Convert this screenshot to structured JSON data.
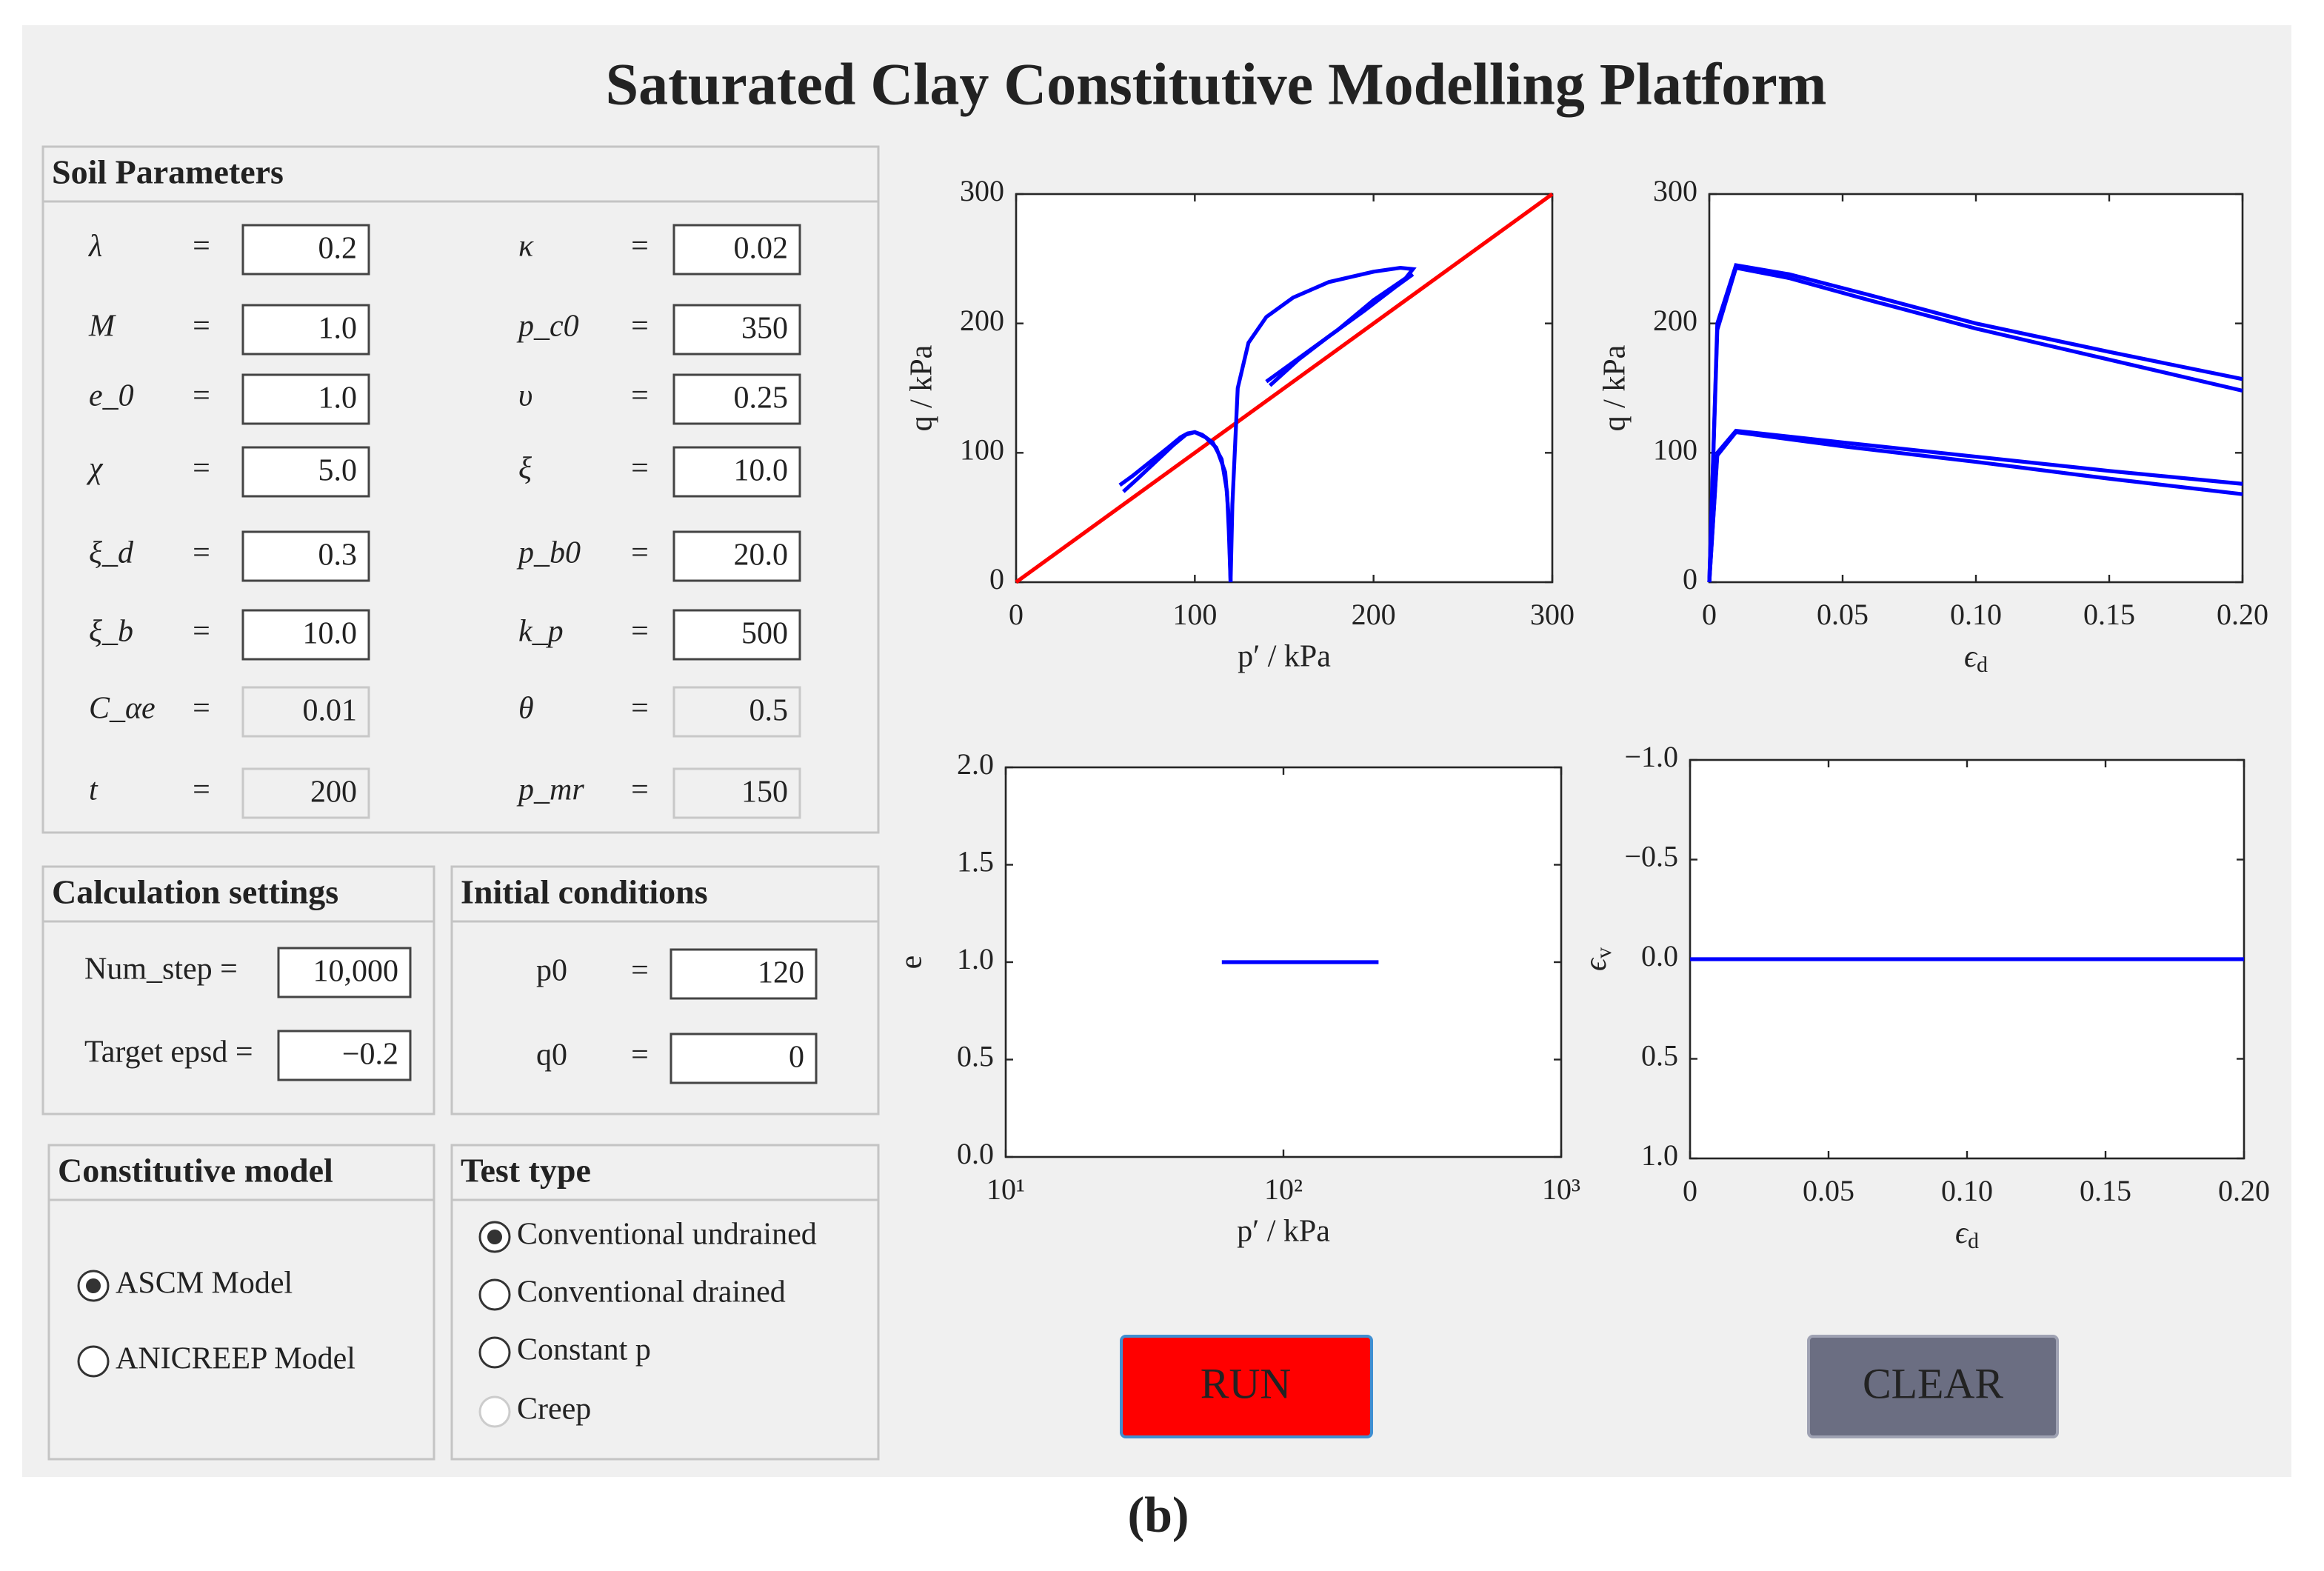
{
  "title": "Saturated Clay Constitutive Modelling Platform",
  "equals": "=",
  "soil_parameters": {
    "title": "Soil Parameters",
    "params": [
      {
        "label": "λ",
        "value": "0.2",
        "enabled": true
      },
      {
        "label": "κ",
        "value": "0.02",
        "enabled": true
      },
      {
        "label": "M",
        "value": "1.0",
        "enabled": true
      },
      {
        "label": "p_c0",
        "value": "350",
        "enabled": true
      },
      {
        "label": "e_0",
        "value": "1.0",
        "enabled": true
      },
      {
        "label": "υ",
        "value": "0.25",
        "enabled": true
      },
      {
        "label": "χ",
        "value": "5.0",
        "enabled": true
      },
      {
        "label": "ξ",
        "value": "10.0",
        "enabled": true
      },
      {
        "label": "ξ_d",
        "value": "0.3",
        "enabled": true
      },
      {
        "label": "p_b0",
        "value": "20.0",
        "enabled": true
      },
      {
        "label": "ξ_b",
        "value": "10.0",
        "enabled": true
      },
      {
        "label": "k_p",
        "value": "500",
        "enabled": true
      },
      {
        "label": "C_αe",
        "value": "0.01",
        "enabled": false
      },
      {
        "label": "θ",
        "value": "0.5",
        "enabled": false
      },
      {
        "label": "t",
        "value": "200",
        "enabled": false
      },
      {
        "label": "p_mr",
        "value": "150",
        "enabled": false
      }
    ]
  },
  "calculation_settings": {
    "title": "Calculation settings",
    "fields": [
      {
        "label": "Num_step =",
        "value": "10,000"
      },
      {
        "label": "Target epsd =",
        "value": "−0.2"
      }
    ]
  },
  "initial_conditions": {
    "title": "Initial conditions",
    "fields": [
      {
        "label": "p0",
        "value": "120"
      },
      {
        "label": "q0",
        "value": "0"
      }
    ]
  },
  "constitutive_model": {
    "title": "Constitutive model",
    "options": [
      {
        "label": "ASCM Model",
        "selected": true,
        "enabled": true
      },
      {
        "label": "ANICREEP Model",
        "selected": false,
        "enabled": true
      }
    ]
  },
  "test_type": {
    "title": "Test type",
    "options": [
      {
        "label": "Conventional undrained",
        "selected": true,
        "enabled": true
      },
      {
        "label": "Conventional drained",
        "selected": false,
        "enabled": true
      },
      {
        "label": "Constant p",
        "selected": false,
        "enabled": true
      },
      {
        "label": "Creep",
        "selected": false,
        "enabled": false
      }
    ]
  },
  "buttons": {
    "run": "RUN",
    "clear": "CLEAR"
  },
  "caption": "(b)",
  "charts": [
    {
      "type": "line",
      "xlabel": "p′ / kPa",
      "ylabel": "q / kPa",
      "log_x": false,
      "xlim": [
        0,
        300
      ],
      "xticks": [
        0,
        100,
        200,
        300
      ],
      "ylim": [
        0,
        300
      ],
      "yticks": [
        0,
        100,
        200,
        300
      ],
      "series": [
        {
          "color": "#ff0000",
          "x": [
            0,
            300
          ],
          "y": [
            0,
            300
          ]
        },
        {
          "color": "#0000ff",
          "x": [
            120,
            119,
            118,
            115,
            110,
            104,
            100,
            96,
            92,
            85,
            75,
            65,
            58
          ],
          "y": [
            0,
            40,
            70,
            95,
            108,
            114,
            116,
            115,
            112,
            104,
            93,
            82,
            75
          ]
        },
        {
          "color": "#0000ff",
          "x": [
            120,
            119,
            117,
            112,
            106,
            100,
            95,
            88,
            78,
            68,
            60
          ],
          "y": [
            0,
            50,
            85,
            104,
            112,
            116,
            114,
            106,
            93,
            80,
            70
          ]
        },
        {
          "color": "#0000ff",
          "x": [
            120,
            121,
            124,
            130,
            140,
            155,
            175,
            200,
            215,
            222,
            218,
            200,
            180,
            160,
            140
          ],
          "y": [
            0,
            60,
            150,
            185,
            205,
            220,
            232,
            240,
            243,
            242,
            235,
            218,
            195,
            175,
            155
          ]
        },
        {
          "color": "#0000ff",
          "x": [
            222,
            212,
            195,
            175,
            158,
            142
          ],
          "y": [
            238,
            228,
            210,
            190,
            172,
            152
          ]
        }
      ]
    },
    {
      "type": "line",
      "xlabel": {
        "symbol": "ϵ",
        "sub": "d"
      },
      "ylabel": "q / kPa",
      "log_x": false,
      "xlim": [
        0,
        0.2
      ],
      "xticks": [
        0,
        0.05,
        {
          "value": 0.1,
          "label": "0.10"
        },
        0.15,
        {
          "value": 0.2,
          "label": "0.20"
        }
      ],
      "ylim": [
        0,
        300
      ],
      "yticks": [
        0,
        100,
        200,
        300
      ],
      "series": [
        {
          "color": "#0000ff",
          "x": [
            0,
            0.003,
            0.01,
            0.03,
            0.06,
            0.1,
            0.15,
            0.2
          ],
          "y": [
            0,
            200,
            245,
            238,
            222,
            200,
            178,
            157
          ]
        },
        {
          "color": "#0000ff",
          "x": [
            0,
            0.003,
            0.01,
            0.03,
            0.06,
            0.1,
            0.15,
            0.2
          ],
          "y": [
            0,
            195,
            243,
            235,
            218,
            196,
            172,
            148
          ]
        },
        {
          "color": "#0000ff",
          "x": [
            0,
            0.003,
            0.01,
            0.05,
            0.1,
            0.15,
            0.2
          ],
          "y": [
            0,
            100,
            117,
            108,
            97,
            86,
            76
          ]
        },
        {
          "color": "#0000ff",
          "x": [
            0,
            0.003,
            0.01,
            0.05,
            0.1,
            0.15,
            0.2
          ],
          "y": [
            0,
            98,
            116,
            105,
            93,
            80,
            68
          ]
        }
      ]
    },
    {
      "type": "line",
      "xlabel": "p′ / kPa",
      "ylabel": "e",
      "log_x": true,
      "xlim": [
        10,
        1000
      ],
      "xticks": [
        {
          "value": 10,
          "label": "10¹"
        },
        {
          "value": 100,
          "label": "10²"
        },
        {
          "value": 1000,
          "label": "10³"
        }
      ],
      "ylim": [
        0,
        2
      ],
      "yticks": [
        {
          "value": 0,
          "label": "0.0"
        },
        0.5,
        {
          "value": 1,
          "label": "1.0"
        },
        1.5,
        {
          "value": 2,
          "label": "2.0"
        }
      ],
      "series": [
        {
          "color": "#0000ff",
          "x": [
            60,
            220
          ],
          "y": [
            1.0,
            1.0
          ]
        }
      ]
    },
    {
      "type": "line",
      "xlabel": {
        "symbol": "ϵ",
        "sub": "d"
      },
      "ylabel": {
        "symbol": "ϵ",
        "sub": "v"
      },
      "log_x": false,
      "xlim": [
        0,
        0.2
      ],
      "xticks": [
        0,
        0.05,
        {
          "value": 0.1,
          "label": "0.10"
        },
        0.15,
        {
          "value": 0.2,
          "label": "0.20"
        }
      ],
      "ylim": [
        1,
        -1
      ],
      "yticks": [
        {
          "value": -1,
          "label": "−1.0"
        },
        {
          "value": -0.5,
          "label": "−0.5"
        },
        {
          "value": 0,
          "label": "0.0"
        },
        0.5,
        {
          "value": 1,
          "label": "1.0"
        }
      ],
      "series": [
        {
          "color": "#0000ff",
          "x": [
            0,
            0.2
          ],
          "y": [
            0,
            0
          ]
        }
      ]
    }
  ]
}
